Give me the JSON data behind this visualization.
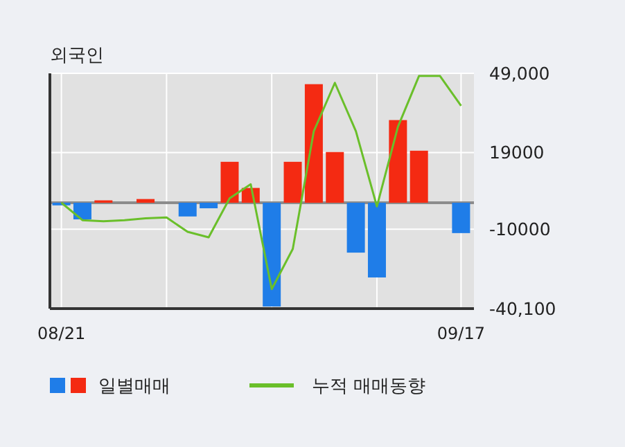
{
  "chart_data": {
    "type": "bar",
    "title": "외국인",
    "categories": [
      "08/21",
      null,
      null,
      null,
      null,
      null,
      null,
      null,
      null,
      null,
      null,
      null,
      null,
      null,
      null,
      null,
      null,
      null,
      null,
      "09/17"
    ],
    "series": [
      {
        "name": "일별매매",
        "values": [
          -1000,
          -6300,
          900,
          0,
          1400,
          0,
          -5200,
          -2100,
          15500,
          5600,
          -39300,
          15500,
          44900,
          19200,
          -18900,
          -28300,
          31300,
          19700,
          0,
          -11500
        ],
        "colors": [
          "#1f7de8",
          "#1f7de8",
          "#f42a12",
          "#f42a12",
          "#f42a12",
          "#f42a12",
          "#1f7de8",
          "#1f7de8",
          "#f42a12",
          "#f42a12",
          "#1f7de8",
          "#f42a12",
          "#f42a12",
          "#f42a12",
          "#1f7de8",
          "#1f7de8",
          "#f42a12",
          "#f42a12",
          "#f42a12",
          "#1f7de8"
        ]
      },
      {
        "type": "line",
        "name": "누적 매매동향",
        "color": "#6abf2a",
        "values": [
          0,
          -6600,
          -7000,
          -6600,
          -5900,
          -5600,
          -11000,
          -13100,
          1700,
          7000,
          -32700,
          -17500,
          27100,
          45400,
          27100,
          -1400,
          28800,
          48000,
          48000,
          36700
        ]
      }
    ],
    "ylim": [
      -40100,
      49000
    ],
    "yticks": [
      {
        "value": 49000,
        "label": "49,000"
      },
      19000,
      -10000,
      {
        "value": -40100,
        "label": "-40,100"
      }
    ],
    "grid": true,
    "legend": "bottom"
  }
}
